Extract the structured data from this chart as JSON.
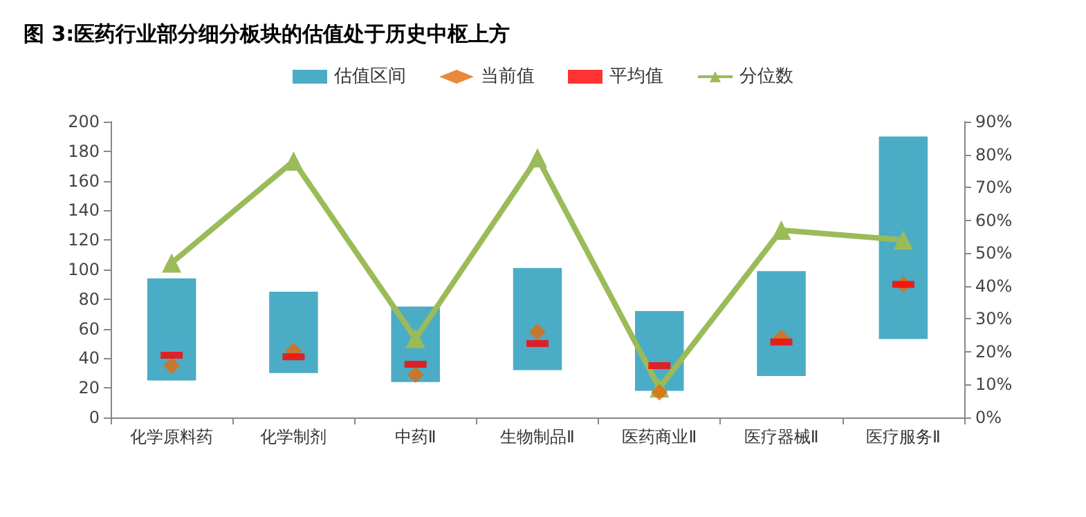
{
  "chart_data": {
    "type": "bar",
    "title": "图 3:医药行业部分细分板块的估值处于历史中枢上方",
    "categories": [
      "化学原料药",
      "化学制剂",
      "中药Ⅱ",
      "生物制品Ⅱ",
      "医药商业Ⅱ",
      "医疗器械Ⅱ",
      "医疗服务Ⅱ"
    ],
    "series": [
      {
        "name": "估值区间",
        "color": "#4bacc6",
        "base": [
          25,
          30,
          24,
          32,
          18,
          28,
          53
        ],
        "values": [
          69,
          55,
          51,
          69,
          54,
          71,
          137
        ]
      },
      {
        "type": "scatter",
        "name": "当前值",
        "color": "#e36c09",
        "marker": "diamond",
        "values": [
          35,
          45,
          29,
          58,
          17,
          54,
          90
        ]
      },
      {
        "type": "scatter",
        "name": "平均值",
        "color": "#ff0000",
        "marker": "square",
        "values": [
          42,
          41,
          36,
          50,
          35,
          51,
          90
        ]
      },
      {
        "type": "line",
        "name": "分位数",
        "color": "#9bbb59",
        "marker": "triangle",
        "axis": "y2",
        "values": [
          47,
          78,
          24,
          79,
          9,
          57,
          54
        ]
      }
    ],
    "ylim": [
      0,
      200
    ],
    "yticks": [
      0,
      20,
      40,
      60,
      80,
      100,
      120,
      140,
      160,
      180,
      200
    ],
    "y2lim": [
      0,
      90
    ],
    "y2ticks": [
      {
        "value": 0,
        "label": "0%"
      },
      {
        "value": 10,
        "label": "10%"
      },
      {
        "value": 20,
        "label": "20%"
      },
      {
        "value": 30,
        "label": "30%"
      },
      {
        "value": 40,
        "label": "40%"
      },
      {
        "value": 50,
        "label": "50%"
      },
      {
        "value": 60,
        "label": "60%"
      },
      {
        "value": 70,
        "label": "70%"
      },
      {
        "value": 80,
        "label": "80%"
      },
      {
        "value": 90,
        "label": "90%"
      }
    ],
    "grid": false,
    "legend": "top"
  }
}
